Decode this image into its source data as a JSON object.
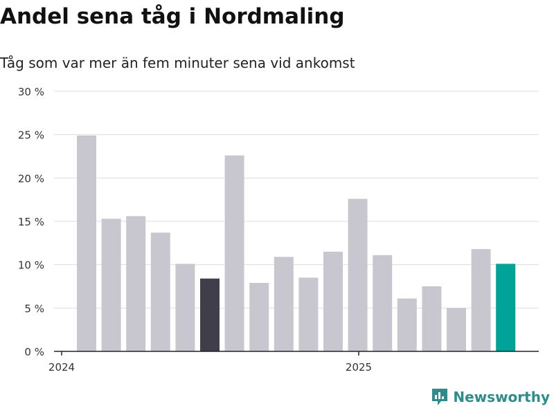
{
  "title": "Andel sena tåg i Nordmaling",
  "subtitle": "Tåg som var mer än fem minuter sena vid ankomst",
  "brand": {
    "name": "Newsworthy"
  },
  "colors": {
    "bar": "#c8c7d0",
    "highlight_dark": "#3f3e4a",
    "highlight_accent": "#00a39a",
    "grid": "#dddddd",
    "axis": "#222222",
    "brand": "#2e8c8c"
  },
  "chart_data": {
    "type": "bar",
    "title": "Andel sena tåg i Nordmaling",
    "subtitle": "Tåg som var mer än fem minuter sena vid ankomst",
    "xlabel": "",
    "ylabel": "",
    "ylim": [
      0,
      30
    ],
    "yticks": [
      "0 %",
      "5 %",
      "10 %",
      "15 %",
      "20 %",
      "25 %",
      "30 %"
    ],
    "xtick_labels": [
      "2024",
      "2025"
    ],
    "grid": true,
    "values": [
      24.9,
      15.3,
      15.6,
      13.7,
      10.1,
      8.4,
      22.6,
      7.9,
      10.9,
      8.5,
      11.5,
      17.6,
      11.1,
      6.1,
      7.5,
      5.0,
      11.8,
      10.1
    ],
    "highlight": {
      "5": "dark",
      "17": "accent"
    }
  }
}
